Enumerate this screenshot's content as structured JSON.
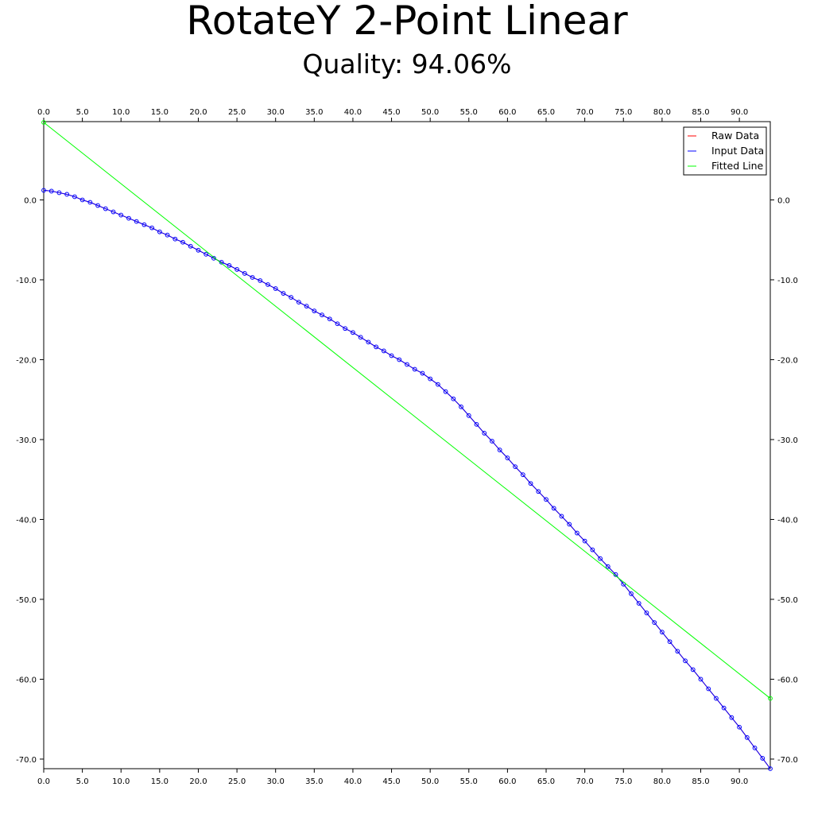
{
  "chart_data": {
    "type": "line",
    "title": "RotateY 2-Point Linear",
    "subtitle": "Quality: 94.06%",
    "xlim": [
      0,
      94
    ],
    "ylim": [
      -71.2,
      9.8
    ],
    "x_ticks": [
      0,
      5,
      10,
      15,
      20,
      25,
      30,
      35,
      40,
      45,
      50,
      55,
      60,
      65,
      70,
      75,
      80,
      85,
      90
    ],
    "x_tick_labels": [
      "0.0",
      "5.0",
      "10.0",
      "15.0",
      "20.0",
      "25.0",
      "30.0",
      "35.0",
      "40.0",
      "45.0",
      "50.0",
      "55.0",
      "60.0",
      "65.0",
      "70.0",
      "75.0",
      "80.0",
      "85.0",
      "90.0"
    ],
    "y_ticks": [
      0,
      -10,
      -20,
      -30,
      -40,
      -50,
      -60,
      -70
    ],
    "y_tick_labels": [
      "0.0",
      "-10.0",
      "-20.0",
      "-30.0",
      "-40.0",
      "-50.0",
      "-60.0",
      "-70.0"
    ],
    "grid": false,
    "legend_position": "top-right",
    "series": [
      {
        "name": "Raw Data",
        "color": "#ff0000",
        "x": [
          0,
          1,
          2,
          3,
          4,
          5,
          6,
          7,
          8,
          9,
          10,
          11,
          12,
          13,
          14,
          15,
          16,
          17,
          18,
          19,
          20,
          21,
          22,
          23,
          24,
          25,
          26,
          27,
          28,
          29,
          30,
          31,
          32,
          33,
          34,
          35,
          36,
          37,
          38,
          39,
          40,
          41,
          42,
          43,
          44,
          45,
          46,
          47,
          48,
          49,
          50,
          51,
          52,
          53,
          54,
          55,
          56,
          57,
          58,
          59,
          60,
          61,
          62,
          63,
          64,
          65,
          66,
          67,
          68,
          69,
          70,
          71,
          72,
          73,
          74,
          75,
          76,
          77,
          78,
          79,
          80,
          81,
          82,
          83,
          84,
          85,
          86,
          87,
          88,
          89,
          90,
          91,
          92,
          93,
          94
        ],
        "y": [
          1.2,
          1.1,
          0.9,
          0.7,
          0.4,
          0.0,
          -0.3,
          -0.7,
          -1.1,
          -1.5,
          -1.9,
          -2.3,
          -2.7,
          -3.1,
          -3.5,
          -4.0,
          -4.4,
          -4.9,
          -5.3,
          -5.8,
          -6.3,
          -6.8,
          -7.3,
          -7.8,
          -8.2,
          -8.7,
          -9.2,
          -9.7,
          -10.1,
          -10.6,
          -11.1,
          -11.7,
          -12.2,
          -12.8,
          -13.3,
          -13.9,
          -14.4,
          -14.9,
          -15.5,
          -16.1,
          -16.6,
          -17.2,
          -17.8,
          -18.4,
          -18.9,
          -19.5,
          -20.0,
          -20.6,
          -21.2,
          -21.7,
          -22.4,
          -23.1,
          -24.0,
          -24.9,
          -25.9,
          -27.0,
          -28.1,
          -29.2,
          -30.2,
          -31.3,
          -32.3,
          -33.4,
          -34.4,
          -35.5,
          -36.5,
          -37.5,
          -38.6,
          -39.6,
          -40.6,
          -41.7,
          -42.7,
          -43.8,
          -44.9,
          -45.9,
          -46.9,
          -48.1,
          -49.3,
          -50.5,
          -51.7,
          -52.9,
          -54.1,
          -55.3,
          -56.5,
          -57.7,
          -58.8,
          -60.0,
          -61.2,
          -62.4,
          -63.6,
          -64.8,
          -66.0,
          -67.3,
          -68.6,
          -69.9,
          -71.2
        ],
        "markers": false
      },
      {
        "name": "Input Data",
        "color": "#0000ff",
        "x": [
          0,
          1,
          2,
          3,
          4,
          5,
          6,
          7,
          8,
          9,
          10,
          11,
          12,
          13,
          14,
          15,
          16,
          17,
          18,
          19,
          20,
          21,
          22,
          23,
          24,
          25,
          26,
          27,
          28,
          29,
          30,
          31,
          32,
          33,
          34,
          35,
          36,
          37,
          38,
          39,
          40,
          41,
          42,
          43,
          44,
          45,
          46,
          47,
          48,
          49,
          50,
          51,
          52,
          53,
          54,
          55,
          56,
          57,
          58,
          59,
          60,
          61,
          62,
          63,
          64,
          65,
          66,
          67,
          68,
          69,
          70,
          71,
          72,
          73,
          74,
          75,
          76,
          77,
          78,
          79,
          80,
          81,
          82,
          83,
          84,
          85,
          86,
          87,
          88,
          89,
          90,
          91,
          92,
          93,
          94
        ],
        "y": [
          1.2,
          1.1,
          0.9,
          0.7,
          0.4,
          0.0,
          -0.3,
          -0.7,
          -1.1,
          -1.5,
          -1.9,
          -2.3,
          -2.7,
          -3.1,
          -3.5,
          -4.0,
          -4.4,
          -4.9,
          -5.3,
          -5.8,
          -6.3,
          -6.8,
          -7.3,
          -7.8,
          -8.2,
          -8.7,
          -9.2,
          -9.7,
          -10.1,
          -10.6,
          -11.1,
          -11.7,
          -12.2,
          -12.8,
          -13.3,
          -13.9,
          -14.4,
          -14.9,
          -15.5,
          -16.1,
          -16.6,
          -17.2,
          -17.8,
          -18.4,
          -18.9,
          -19.5,
          -20.0,
          -20.6,
          -21.2,
          -21.7,
          -22.4,
          -23.1,
          -24.0,
          -24.9,
          -25.9,
          -27.0,
          -28.1,
          -29.2,
          -30.2,
          -31.3,
          -32.3,
          -33.4,
          -34.4,
          -35.5,
          -36.5,
          -37.5,
          -38.6,
          -39.6,
          -40.6,
          -41.7,
          -42.7,
          -43.8,
          -44.9,
          -45.9,
          -46.9,
          -48.1,
          -49.3,
          -50.5,
          -51.7,
          -52.9,
          -54.1,
          -55.3,
          -56.5,
          -57.7,
          -58.8,
          -60.0,
          -61.2,
          -62.4,
          -63.6,
          -64.8,
          -66.0,
          -67.3,
          -68.6,
          -69.9,
          -71.2
        ],
        "markers": true
      },
      {
        "name": "Fitted Line",
        "color": "#00ff00",
        "x": [
          0,
          94
        ],
        "y": [
          9.7,
          -62.4
        ],
        "markers": true
      }
    ]
  }
}
